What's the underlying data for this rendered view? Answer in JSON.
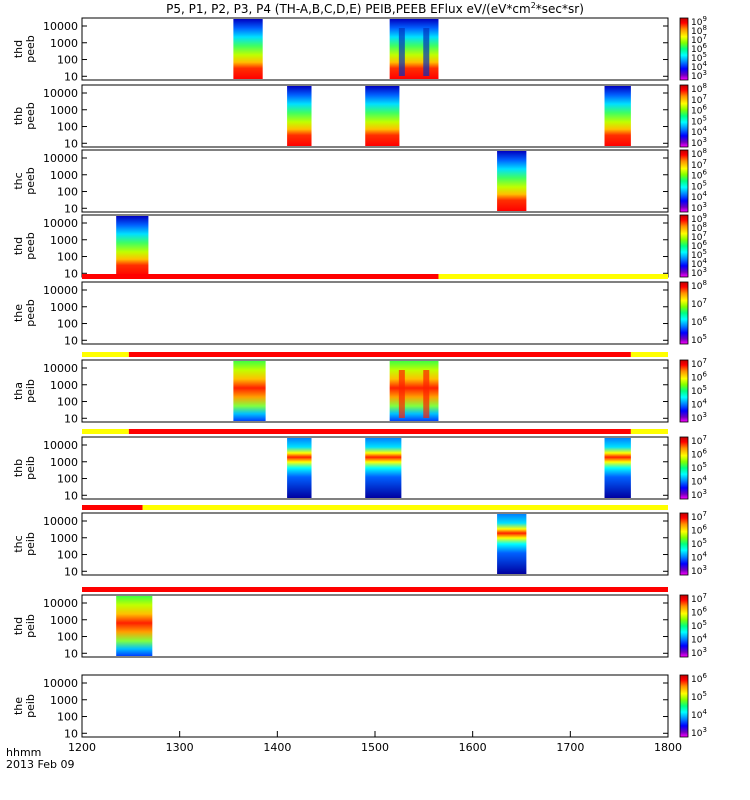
{
  "title": "P5, P1, P2, P3, P4 (TH-A,B,C,D,E) PEIB,PEEB EFlux eV/(eV*cm",
  "title_sup": "2",
  "title_tail": "*sec*sr)",
  "x_axis": {
    "label_line1": "hhmm",
    "label_line2": "2013 Feb 09",
    "ticks": [
      "1200",
      "1300",
      "1400",
      "1500",
      "1600",
      "1700",
      "1800"
    ]
  },
  "colors": {
    "bar_red": "#ff0000",
    "bar_yellow": "#ffff00",
    "colorbar": [
      "#ffffff",
      "#ff00ff",
      "#7000c0",
      "#0000ff",
      "#0090ff",
      "#00ffff",
      "#00ff80",
      "#80ff00",
      "#ffff00",
      "#ff9000",
      "#ff0000",
      "#c00000"
    ]
  },
  "chart_data": {
    "type": "heatmap",
    "xlim": [
      1200,
      1800
    ],
    "x_unit": "hhmm",
    "y_ticks": [
      "10",
      "100",
      "1000",
      "10000"
    ],
    "y_scale": "log",
    "panels": [
      {
        "name": "thd peeb",
        "label_line1": "thd",
        "label_line2": "peeb",
        "colorbar_ticks": [
          "10",
          "10",
          "10",
          "10",
          "10",
          "10",
          "10"
        ],
        "colorbar_exp": [
          "9",
          "8",
          "7",
          "6",
          "5",
          "4",
          "3"
        ],
        "segments": [
          {
            "start": 1355,
            "end": 1385,
            "style": "e-peeb"
          },
          {
            "start": 1515,
            "end": 1565,
            "style": "e-peeb-spikes"
          }
        ],
        "bar": null
      },
      {
        "name": "thb peeb",
        "label_line1": "thb",
        "label_line2": "peeb",
        "colorbar_ticks": [
          "10",
          "10",
          "10",
          "10",
          "10",
          "10"
        ],
        "colorbar_exp": [
          "8",
          "7",
          "6",
          "5",
          "4",
          "3"
        ],
        "segments": [
          {
            "start": 1410,
            "end": 1435,
            "style": "e-peeb"
          },
          {
            "start": 1490,
            "end": 1525,
            "style": "e-peeb"
          },
          {
            "start": 1735,
            "end": 1762,
            "style": "e-peeb"
          }
        ],
        "bar": null
      },
      {
        "name": "thc peeb",
        "label_line1": "thc",
        "label_line2": "peeb",
        "colorbar_ticks": [
          "10",
          "10",
          "10",
          "10",
          "10",
          "10"
        ],
        "colorbar_exp": [
          "8",
          "7",
          "6",
          "5",
          "4",
          "3"
        ],
        "segments": [
          {
            "start": 1625,
            "end": 1655,
            "style": "e-peeb"
          }
        ],
        "bar": null
      },
      {
        "name": "thd peeb",
        "label_line1": "thd",
        "label_line2": "peeb",
        "colorbar_ticks": [
          "10",
          "10",
          "10",
          "10",
          "10",
          "10",
          "10"
        ],
        "colorbar_exp": [
          "9",
          "8",
          "7",
          "6",
          "5",
          "4",
          "3"
        ],
        "segments": [
          {
            "start": 1235,
            "end": 1268,
            "style": "e-peeb"
          }
        ],
        "bar": null
      },
      {
        "name": "the peeb",
        "label_line1": "the",
        "label_line2": "peeb",
        "colorbar_ticks": [
          "10",
          "10",
          "10",
          "10"
        ],
        "colorbar_exp": [
          "8",
          "7",
          "6",
          "5"
        ],
        "segments": [],
        "bar": [
          {
            "start": 1200,
            "end": 1565,
            "color": "red"
          },
          {
            "start": 1565,
            "end": 1800,
            "color": "yellow"
          }
        ]
      },
      {
        "name": "tha peib",
        "label_line1": "tha",
        "label_line2": "peib",
        "colorbar_ticks": [
          "10",
          "10",
          "10",
          "10",
          "10"
        ],
        "colorbar_exp": [
          "7",
          "6",
          "5",
          "4",
          "3"
        ],
        "segments": [
          {
            "start": 1355,
            "end": 1388,
            "style": "i-peib"
          },
          {
            "start": 1515,
            "end": 1565,
            "style": "i-peib-spikes"
          }
        ],
        "bar": [
          {
            "start": 1200,
            "end": 1248,
            "color": "yellow"
          },
          {
            "start": 1248,
            "end": 1762,
            "color": "red"
          },
          {
            "start": 1762,
            "end": 1800,
            "color": "yellow"
          }
        ]
      },
      {
        "name": "thb peib",
        "label_line1": "thb",
        "label_line2": "peib",
        "colorbar_ticks": [
          "10",
          "10",
          "10",
          "10",
          "10"
        ],
        "colorbar_exp": [
          "7",
          "6",
          "5",
          "4",
          "3"
        ],
        "segments": [
          {
            "start": 1410,
            "end": 1435,
            "style": "i-peib-mid"
          },
          {
            "start": 1490,
            "end": 1527,
            "style": "i-peib-mid"
          },
          {
            "start": 1735,
            "end": 1762,
            "style": "i-peib-mid"
          }
        ],
        "bar": [
          {
            "start": 1200,
            "end": 1248,
            "color": "yellow"
          },
          {
            "start": 1248,
            "end": 1762,
            "color": "red"
          },
          {
            "start": 1762,
            "end": 1800,
            "color": "yellow"
          }
        ]
      },
      {
        "name": "thc peib",
        "label_line1": "thc",
        "label_line2": "peib",
        "colorbar_ticks": [
          "10",
          "10",
          "10",
          "10",
          "10"
        ],
        "colorbar_exp": [
          "7",
          "6",
          "5",
          "4",
          "3"
        ],
        "segments": [
          {
            "start": 1625,
            "end": 1655,
            "style": "i-peib-mid"
          }
        ],
        "bar": [
          {
            "start": 1200,
            "end": 1262,
            "color": "red"
          },
          {
            "start": 1262,
            "end": 1800,
            "color": "yellow"
          }
        ]
      },
      {
        "name": "thd peib",
        "label_line1": "thd",
        "label_line2": "peib",
        "colorbar_ticks": [
          "10",
          "10",
          "10",
          "10",
          "10"
        ],
        "colorbar_exp": [
          "7",
          "6",
          "5",
          "4",
          "3"
        ],
        "segments": [
          {
            "start": 1235,
            "end": 1272,
            "style": "i-peib"
          }
        ],
        "bar": [
          {
            "start": 1200,
            "end": 1800,
            "color": "red"
          }
        ]
      },
      {
        "name": "the peib",
        "label_line1": "the",
        "label_line2": "peib",
        "colorbar_ticks": [
          "10",
          "10",
          "10",
          "10"
        ],
        "colorbar_exp": [
          "6",
          "5",
          "4",
          "3"
        ],
        "segments": [],
        "bar": null
      }
    ]
  }
}
